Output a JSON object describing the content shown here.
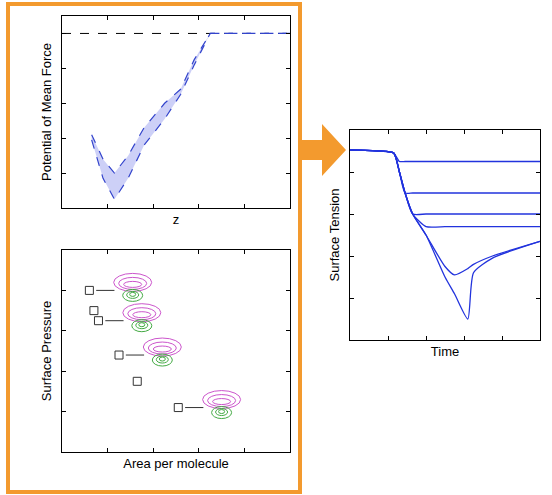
{
  "chart_data": [
    {
      "type": "band",
      "x_label": "z",
      "y_label": "Potential of Mean Force",
      "band": {
        "x": [
          1.3,
          1.8,
          2.3,
          2.9,
          3.6,
          4.5,
          5.2,
          5.8,
          6.5,
          10
        ],
        "lower": [
          -6.1,
          -8.3,
          -9.5,
          -8.3,
          -6.4,
          -4.9,
          -3.5,
          -1.8,
          0,
          0
        ],
        "upper": [
          -5.8,
          -7.2,
          -8.0,
          -7.0,
          -5.4,
          -4.0,
          -3.2,
          -1.5,
          0,
          0
        ]
      },
      "hline": 0,
      "color": "#3344cc",
      "line_style": "dashed",
      "xlim": [
        0,
        10
      ],
      "ylim": [
        -10,
        1
      ],
      "xticks": [
        0,
        2,
        4,
        6,
        8,
        10
      ],
      "yticks": [
        -10,
        -8,
        -6,
        -4,
        -2,
        0
      ],
      "tick_labels": false,
      "grid": false
    },
    {
      "type": "scatter",
      "x_label": "Area per molecule",
      "y_label": "Surface Pressure",
      "x": [
        1.2,
        1.4,
        1.6,
        2.5,
        3.3,
        5.1
      ],
      "values": [
        8.0,
        7.0,
        6.5,
        4.8,
        3.5,
        2.2
      ],
      "marker": "square",
      "color": "#333333",
      "molecule_icons": [
        0,
        2,
        3,
        5
      ],
      "xlim": [
        0,
        10
      ],
      "ylim": [
        0,
        10
      ],
      "xticks": [
        0,
        2,
        4,
        6,
        8,
        10
      ],
      "yticks": [
        0,
        2,
        4,
        6,
        8,
        10
      ],
      "tick_labels": false,
      "grid": false
    },
    {
      "type": "line",
      "x_label": "Time",
      "y_label": "Surface Tension",
      "x": [
        0,
        1.5,
        2.3,
        2.6,
        2.9,
        3.3,
        4.0,
        5.0,
        5.5,
        6.2,
        6.5,
        7.5,
        10
      ],
      "series": [
        {
          "color": "#2233dd",
          "values": [
            9.05,
            9.0,
            8.9,
            8.5,
            8.5,
            8.5,
            8.5,
            8.5,
            8.5,
            8.5,
            8.5,
            8.5,
            8.5
          ]
        },
        {
          "color": "#2233dd",
          "values": [
            9.05,
            9.0,
            8.9,
            8.0,
            7.0,
            7.0,
            7.0,
            7.0,
            7.0,
            7.0,
            7.0,
            7.0,
            7.0
          ]
        },
        {
          "color": "#2233dd",
          "values": [
            9.05,
            9.0,
            8.9,
            8.0,
            7.0,
            6.0,
            6.0,
            6.0,
            6.0,
            6.0,
            6.0,
            6.0,
            6.0
          ]
        },
        {
          "color": "#2233dd",
          "values": [
            9.05,
            9.0,
            8.9,
            8.0,
            7.0,
            6.0,
            5.4,
            5.4,
            5.4,
            5.4,
            5.4,
            5.4,
            5.4
          ]
        },
        {
          "color": "#2233dd",
          "values": [
            9.05,
            9.0,
            8.9,
            8.0,
            7.0,
            6.0,
            5.0,
            3.5,
            3.1,
            3.4,
            3.6,
            4.0,
            4.7
          ]
        },
        {
          "color": "#2233dd",
          "values": [
            9.05,
            9.0,
            8.9,
            8.0,
            7.0,
            6.0,
            5.0,
            3.0,
            2.2,
            1.0,
            3.2,
            3.9,
            4.7
          ]
        }
      ],
      "xlim": [
        0,
        10
      ],
      "ylim": [
        0,
        10
      ],
      "xticks": [
        0,
        2,
        4,
        6,
        8,
        10
      ],
      "yticks": [
        0,
        2,
        4,
        6,
        8,
        10
      ],
      "tick_labels": false,
      "grid": false
    }
  ]
}
